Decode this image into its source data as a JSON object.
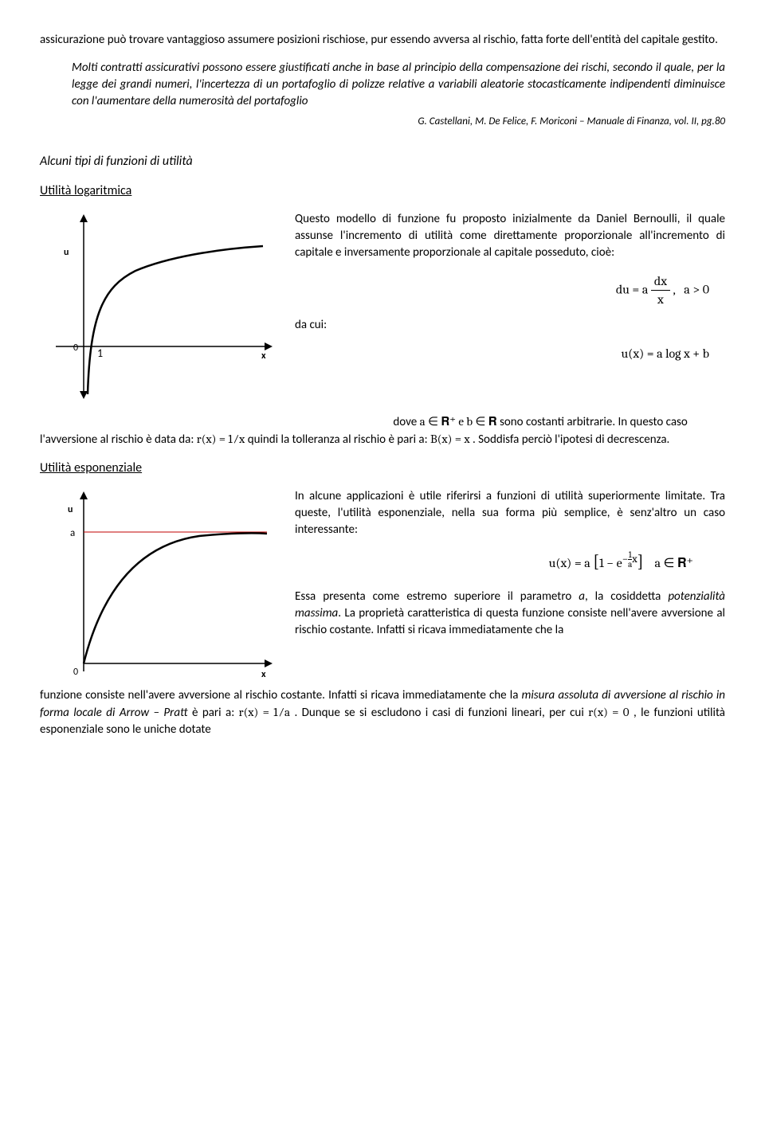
{
  "intro": {
    "p1": "assicurazione può trovare vantaggioso assumere posizioni rischiose, pur essendo avversa al rischio, fatta forte dell'entità del capitale gestito."
  },
  "quote": {
    "text": "Molti contratti assicurativi possono essere giustificati anche in base al principio della compensazione dei rischi, secondo il quale, per la legge dei grandi numeri, l'incertezza di un portafoglio di polizze relative a variabili aleatorie stocasticamente indipendenti diminuisce con l'aumentare della numerosità del portafoglio",
    "cite": "G. Castellani, M. De Felice, F. Moriconi – Manuale di Finanza, vol. II, pg.80"
  },
  "section": {
    "title": "Alcuni tipi di funzioni di utilità"
  },
  "log": {
    "title": "Utilità logaritmica",
    "p1": "Questo modello di funzione fu proposto inizialmente da Daniel Bernoulli, il quale assunse l'incremento di utilità come direttamente proporzionale all'incremento di capitale e inversamente proporzionale al capitale posseduto, cioè:",
    "eq1_html": "du = a <span style='display:inline-block;vertical-align:middle;text-align:center;'><span style='display:block;border-bottom:1px solid #000;padding:0 4px;'>dx</span><span style='display:block;padding:0 4px;'>x</span></span> ,&nbsp;&nbsp; a &gt; 0",
    "dacui": "da cui:",
    "eq2": "u(x) =  a  log x + b",
    "p2_a": "dove ",
    "p2_b": " sono costanti arbitrarie. In questo caso l'avversione al rischio è data da: ",
    "p2_c": " quindi la tolleranza al rischio è pari a: ",
    "p2_d": ". Soddisfa perciò l'ipotesi di decrescenza.",
    "math_aR": "a ∈ 𝐑⁺ e b  ∈ 𝐑",
    "math_rx": "r(x) = 1⁄x",
    "math_Bx": "B(x)  = x",
    "chart": {
      "axis_color": "#000000",
      "curve_color": "#000000",
      "curve_width": 2,
      "label_u": "u",
      "label_x": "x",
      "label_0": "0",
      "label_1": "1"
    }
  },
  "exp": {
    "title": "Utilità esponenziale",
    "p1": "In alcune applicazioni è utile riferirsi a funzioni di utilità superiormente limitate. Tra queste, l'utilità esponenziale, nella sua forma più semplice, è senz'altro un caso interessante:",
    "eq1_html": "u(x) = a <span style='font-size:22px;'>[</span>1 − e<sup>−<span style='display:inline-block;vertical-align:middle;text-align:center;font-size:11px;line-height:1;'><span style='display:block;border-bottom:1px solid #000;'>1</span><span style='display:block;'>a</span></span>x</sup><span style='font-size:22px;'>]</span>&nbsp;&nbsp;&nbsp; a ∈ 𝐑⁺",
    "p2": "Essa presenta come estremo superiore il parametro ",
    "p2_a": "a",
    "p2_b": ", la cosiddetta ",
    "p2_c": "potenzialità massima",
    "p2_d": ". La proprietà caratteristica di questa funzione consiste nell'avere avversione al rischio costante. Infatti si ricava immediatamente che la ",
    "p2_e": "misura assoluta di avversione al rischio in forma locale di Arrow – Pratt",
    "p2_f": " è pari a: ",
    "math_rx": "r(x) = 1⁄a",
    "p2_g": ". Dunque se si escludono i casi di funzioni lineari, per cui ",
    "math_rx0": "r(x) = 0",
    "p2_h": ", le funzioni utilità esponenziale sono le uniche dotate",
    "chart": {
      "axis_color": "#000000",
      "curve_color": "#000000",
      "curve_width": 2,
      "asymptote_color": "#c00000",
      "asymptote_width": 1,
      "label_u": "u",
      "label_x": "x",
      "label_0": "0",
      "label_a": "a"
    }
  }
}
